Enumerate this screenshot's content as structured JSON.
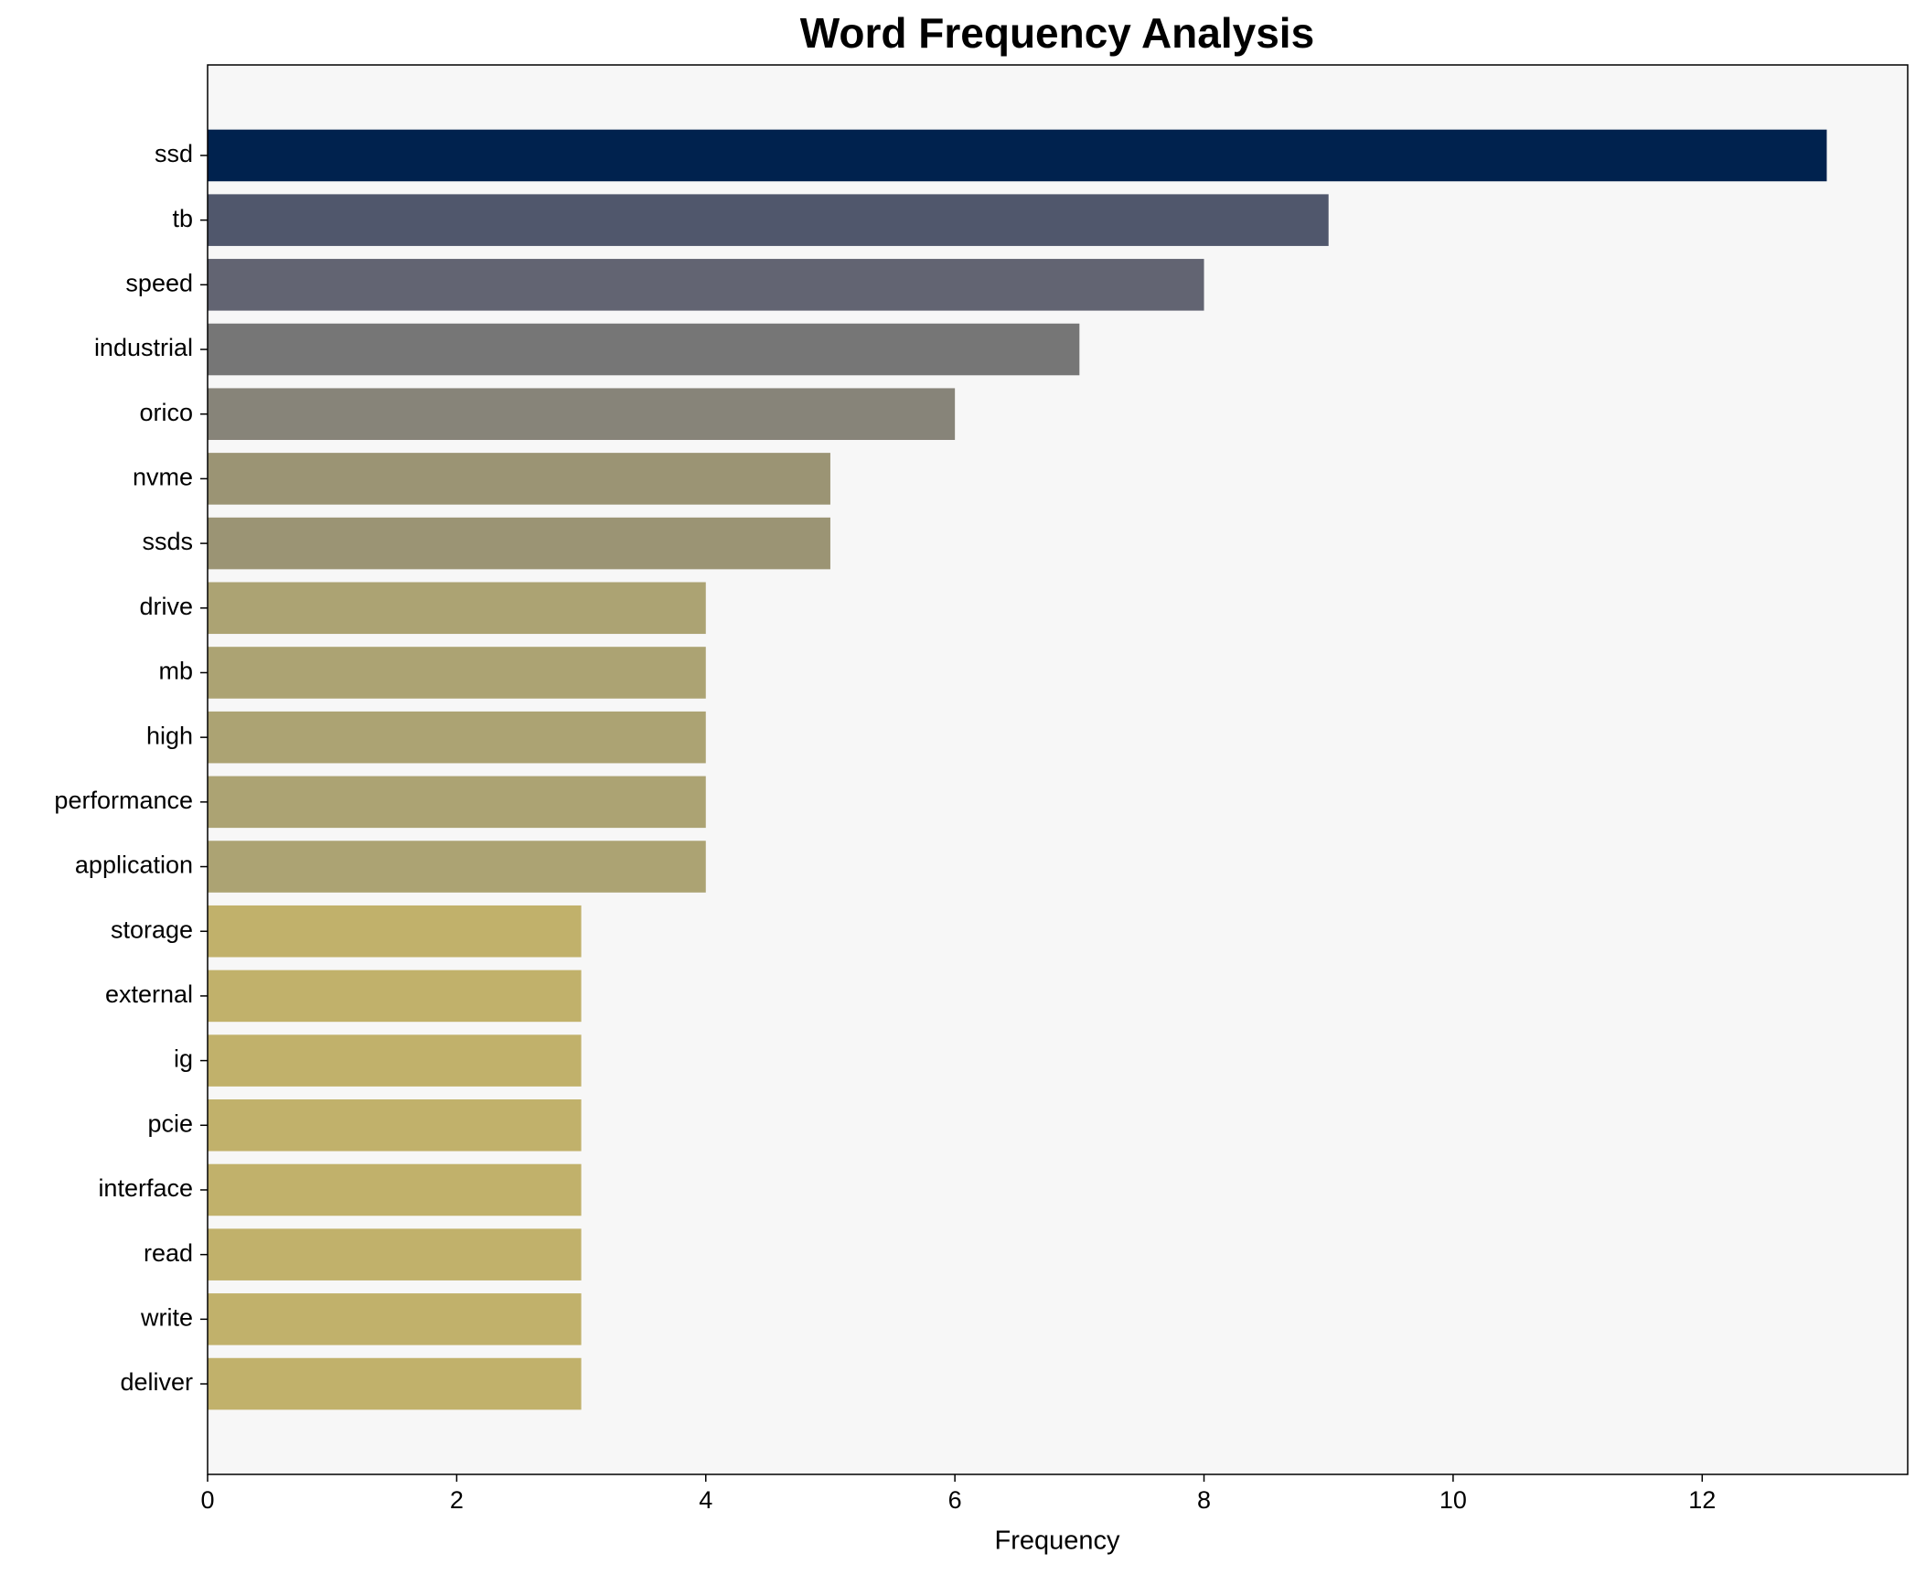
{
  "chart_data": {
    "type": "bar",
    "orientation": "horizontal",
    "title": "Word Frequency Analysis",
    "x_label": "Frequency",
    "categories": [
      "ssd",
      "tb",
      "speed",
      "industrial",
      "orico",
      "nvme",
      "ssds",
      "drive",
      "mb",
      "high",
      "performance",
      "application",
      "storage",
      "external",
      "ig",
      "pcie",
      "interface",
      "read",
      "write",
      "deliver"
    ],
    "values": [
      13,
      9,
      8,
      7,
      6,
      5,
      5,
      4,
      4,
      4,
      4,
      4,
      3,
      3,
      3,
      3,
      3,
      3,
      3,
      3
    ],
    "colors": [
      "#00224e",
      "#50576c",
      "#626472",
      "#767676",
      "#878479",
      "#9b9474",
      "#9b9474",
      "#aca373",
      "#aca373",
      "#aca373",
      "#aca373",
      "#aca373",
      "#c1b16b",
      "#c1b16b",
      "#c1b16b",
      "#c1b16b",
      "#c1b16b",
      "#c1b16b",
      "#c1b16b",
      "#c1b16b"
    ],
    "xlim": [
      0,
      13.65
    ],
    "xticks": [
      0,
      2,
      4,
      6,
      8,
      10,
      12
    ],
    "grid": false
  }
}
